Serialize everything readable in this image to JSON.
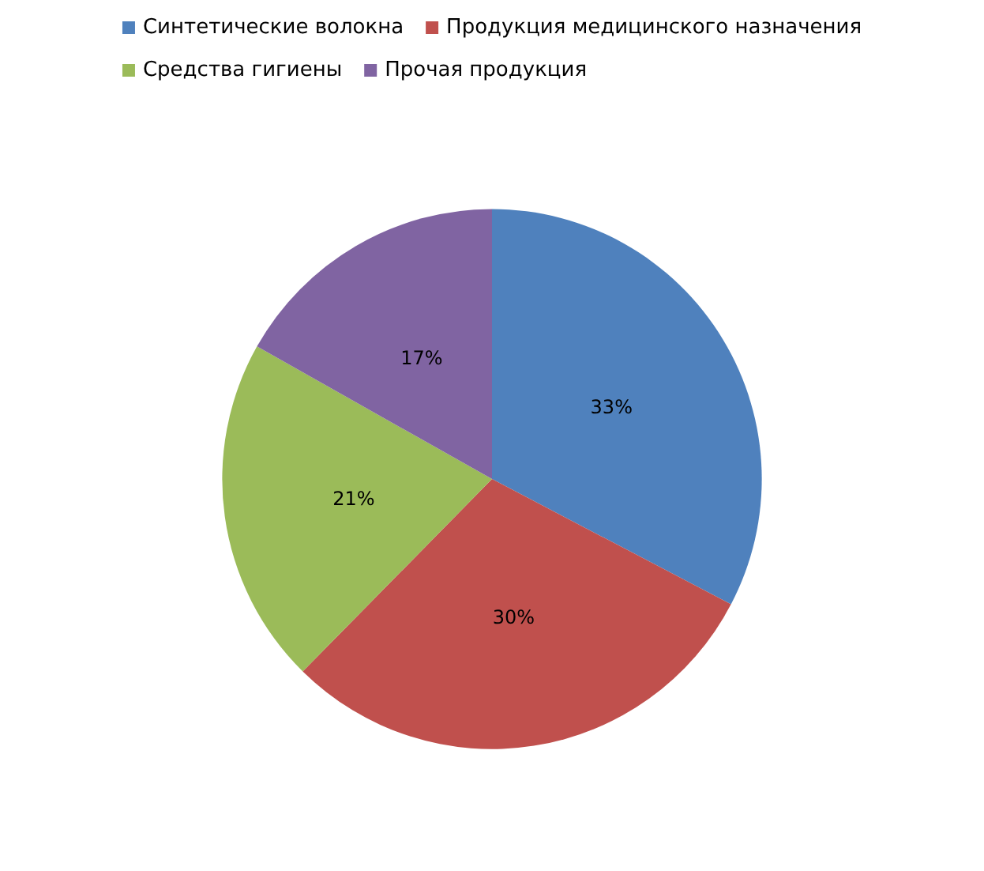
{
  "chart_data": {
    "type": "pie",
    "categories": [
      "Синтетические волокна",
      "Продукция медицинского назначения",
      "Средства гигиены",
      "Прочая продукция"
    ],
    "values": [
      33,
      30,
      21,
      17
    ],
    "value_labels": [
      "33%",
      "30%",
      "21%",
      "17%"
    ],
    "colors": [
      "#4f81bd",
      "#c0504d",
      "#9bbb59",
      "#8064a2"
    ],
    "legend": "top"
  }
}
